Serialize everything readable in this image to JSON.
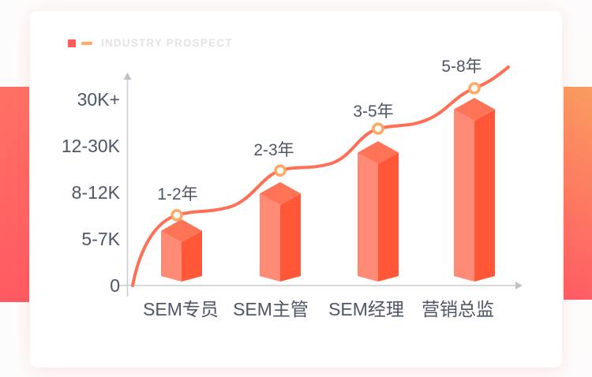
{
  "legend": {
    "title": "INDUSTRY PROSPECT"
  },
  "colors": {
    "legend_square": "#FF5C5C",
    "legend_dash": "#FFA763",
    "legend_text": "#E4E4E8",
    "bar_left_face": "#FF8A75",
    "bar_right_face": "#FF5738",
    "bar_top_face": "#FF7356",
    "curve": "#FF6F55",
    "marker_ring": "#FFA763",
    "marker_fill": "#FFFFFF",
    "axis": "#C9CCD1",
    "axis_arrow": "#BFC2C8",
    "label_text": "#4D5566",
    "ribbon_left_top": "#FF7164",
    "ribbon_left_bottom": "#FF5A63",
    "ribbon_right_top": "#FA9C60",
    "ribbon_right_bottom": "#FF5C64"
  },
  "chart_data": {
    "type": "bar",
    "subtype": "3d-bars-with-smooth-trend-line",
    "title": "INDUSTRY PROSPECT",
    "categories": [
      "SEM专员",
      "SEM主管",
      "SEM经理",
      "营销总监"
    ],
    "y_axis": {
      "scale": "ordinal",
      "tick_labels": [
        "0",
        "5-7K",
        "8-12K",
        "12-30K",
        "30K+"
      ],
      "origin_label": "0"
    },
    "bars": {
      "name": "salary-level",
      "levels": [
        0.93,
        1.73,
        2.61,
        3.54
      ],
      "levels_unit": "index-on-ordinal-salary-axis (1=5-7K, 2=8-12K, 3=12-30K, 4=30K+)"
    },
    "line": {
      "name": "experience-trend",
      "levels": [
        1.51,
        2.47,
        3.37,
        4.24
      ],
      "point_labels": [
        "1-2年",
        "2-3年",
        "3-5年",
        "5-8年"
      ]
    },
    "points": [
      {
        "category": "SEM专员",
        "experience": "1-2年",
        "salary_band": "5-7K"
      },
      {
        "category": "SEM主管",
        "experience": "2-3年",
        "salary_band": "8-12K"
      },
      {
        "category": "SEM经理",
        "experience": "3-5年",
        "salary_band": "12-30K"
      },
      {
        "category": "营销总监",
        "experience": "5-8年",
        "salary_band": "30K+"
      }
    ],
    "legend_position": "top-left",
    "grid": false
  }
}
